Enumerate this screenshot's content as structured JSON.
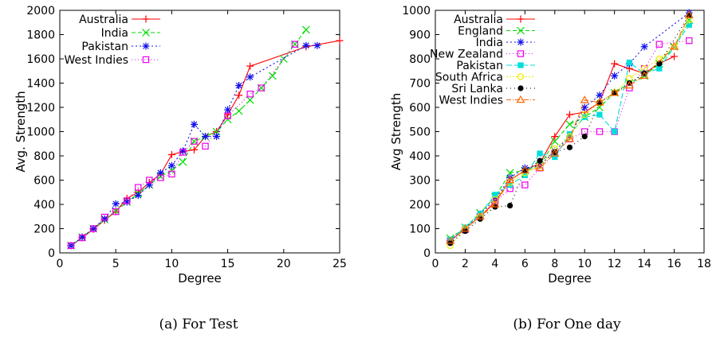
{
  "chart_data": [
    {
      "type": "line",
      "caption": "(a) For Test",
      "xlabel": "Degree",
      "ylabel": "Avg. Strength",
      "xlim": [
        0,
        25
      ],
      "ylim": [
        0,
        2000
      ],
      "xticks": [
        0,
        5,
        10,
        15,
        20,
        25
      ],
      "yticks": [
        0,
        200,
        400,
        600,
        800,
        1000,
        1200,
        1400,
        1600,
        1800,
        2000
      ],
      "legend_position": "top-left",
      "series": [
        {
          "name": "Australia",
          "color": "#ff0000",
          "marker": "plus",
          "dash": "",
          "x": [
            1,
            2,
            3,
            4,
            5,
            6,
            7,
            8,
            9,
            10,
            11,
            12,
            13,
            14,
            15,
            16,
            17,
            22,
            25
          ],
          "y": [
            60,
            125,
            195,
            270,
            340,
            450,
            500,
            580,
            650,
            810,
            835,
            850,
            960,
            1000,
            1140,
            1300,
            1540,
            1700,
            1750
          ]
        },
        {
          "name": "India",
          "color": "#00dd00",
          "marker": "cross",
          "dash": "5,3",
          "x": [
            1,
            2,
            3,
            4,
            5,
            6,
            7,
            8,
            9,
            10,
            11,
            12,
            13,
            14,
            15,
            16,
            17,
            18,
            19,
            20,
            21,
            22
          ],
          "y": [
            60,
            130,
            200,
            275,
            345,
            420,
            490,
            560,
            630,
            680,
            750,
            920,
            960,
            1000,
            1100,
            1170,
            1260,
            1360,
            1460,
            1600,
            1720,
            1840
          ]
        },
        {
          "name": "Pakistan",
          "color": "#1010ee",
          "marker": "star",
          "dash": "2,3",
          "x": [
            1,
            2,
            3,
            4,
            5,
            6,
            7,
            8,
            9,
            10,
            11,
            12,
            13,
            14,
            15,
            16,
            17,
            22,
            23
          ],
          "y": [
            60,
            130,
            200,
            280,
            405,
            420,
            475,
            560,
            660,
            720,
            840,
            1060,
            960,
            960,
            1180,
            1380,
            1450,
            1710,
            1710
          ]
        },
        {
          "name": "West Indies",
          "color": "#ee00ee",
          "marker": "square",
          "dash": "1,3",
          "x": [
            1,
            2,
            3,
            4,
            5,
            6,
            7,
            8,
            9,
            10,
            11,
            12,
            13,
            15,
            17,
            18,
            21
          ],
          "y": [
            60,
            125,
            200,
            295,
            340,
            430,
            540,
            600,
            620,
            650,
            830,
            920,
            880,
            1130,
            1310,
            1360,
            1720
          ]
        }
      ]
    },
    {
      "type": "line",
      "caption": "(b) For One day",
      "xlabel": "Degree",
      "ylabel": "Avg Strength",
      "xlim": [
        0,
        18
      ],
      "ylim": [
        0,
        1000
      ],
      "xticks": [
        0,
        2,
        4,
        6,
        8,
        10,
        12,
        14,
        16,
        18
      ],
      "yticks": [
        0,
        100,
        200,
        300,
        400,
        500,
        600,
        700,
        800,
        900,
        1000
      ],
      "legend_position": "top-left",
      "series": [
        {
          "name": "Australia",
          "color": "#ff0000",
          "marker": "plus",
          "dash": "",
          "x": [
            1,
            2,
            3,
            4,
            5,
            6,
            7,
            8,
            9,
            10,
            11,
            12,
            13,
            14,
            15,
            16
          ],
          "y": [
            50,
            100,
            150,
            210,
            300,
            340,
            370,
            480,
            570,
            580,
            620,
            780,
            760,
            740,
            780,
            810
          ]
        },
        {
          "name": "England",
          "color": "#00dd00",
          "marker": "cross",
          "dash": "5,3",
          "x": [
            1,
            2,
            3,
            4,
            5,
            6,
            7,
            8,
            9,
            10,
            11,
            12,
            13,
            14,
            15,
            16,
            17
          ],
          "y": [
            60,
            105,
            165,
            230,
            330,
            340,
            360,
            460,
            530,
            560,
            600,
            660,
            700,
            730,
            780,
            850,
            960
          ]
        },
        {
          "name": "India",
          "color": "#1010ee",
          "marker": "star",
          "dash": "2,3",
          "x": [
            1,
            2,
            3,
            4,
            5,
            6,
            7,
            8,
            9,
            10,
            11,
            12,
            13,
            14,
            17
          ],
          "y": [
            50,
            100,
            160,
            220,
            310,
            350,
            360,
            420,
            480,
            600,
            650,
            730,
            780,
            850,
            990
          ]
        },
        {
          "name": "New Zealand",
          "color": "#ee00ee",
          "marker": "square",
          "dash": "1,3",
          "x": [
            1,
            2,
            3,
            4,
            5,
            6,
            7,
            8,
            9,
            10,
            11,
            12,
            13,
            14,
            15,
            17
          ],
          "y": [
            50,
            95,
            150,
            210,
            265,
            280,
            350,
            410,
            470,
            500,
            500,
            500,
            680,
            760,
            860,
            875
          ]
        },
        {
          "name": "Pakistan",
          "color": "#00dddd",
          "marker": "filled-square",
          "dash": "7,3",
          "x": [
            1,
            2,
            3,
            4,
            5,
            6,
            7,
            8,
            9,
            10,
            11,
            12,
            13,
            14,
            15,
            17
          ],
          "y": [
            55,
            105,
            160,
            240,
            280,
            320,
            410,
            395,
            490,
            560,
            570,
            500,
            785,
            740,
            760,
            940
          ]
        },
        {
          "name": "South Africa",
          "color": "#eeee00",
          "marker": "circle",
          "dash": "2,2",
          "x": [
            1,
            2,
            3,
            4,
            5,
            6,
            7,
            8,
            9,
            10,
            11,
            12,
            13,
            14,
            15,
            16,
            17
          ],
          "y": [
            30,
            100,
            150,
            220,
            290,
            330,
            360,
            430,
            480,
            570,
            620,
            660,
            720,
            760,
            800,
            850,
            960
          ]
        },
        {
          "name": "Sri Lanka",
          "color": "#000000",
          "marker": "filled-circle",
          "dash": "1,4",
          "x": [
            1,
            2,
            3,
            4,
            5,
            6,
            7,
            8,
            9,
            10,
            11,
            12,
            13,
            14,
            15,
            17
          ],
          "y": [
            40,
            90,
            140,
            190,
            195,
            340,
            380,
            415,
            435,
            480,
            620,
            660,
            700,
            740,
            780,
            980
          ]
        },
        {
          "name": "West Indies",
          "color": "#ff6600",
          "marker": "triangle",
          "dash": "6,2,1,2",
          "x": [
            1,
            2,
            3,
            4,
            5,
            6,
            7,
            8,
            9,
            10,
            11,
            12,
            13,
            14,
            16,
            17
          ],
          "y": [
            50,
            100,
            150,
            200,
            300,
            340,
            350,
            410,
            470,
            630,
            620,
            660,
            690,
            730,
            850,
            980
          ]
        }
      ]
    }
  ]
}
